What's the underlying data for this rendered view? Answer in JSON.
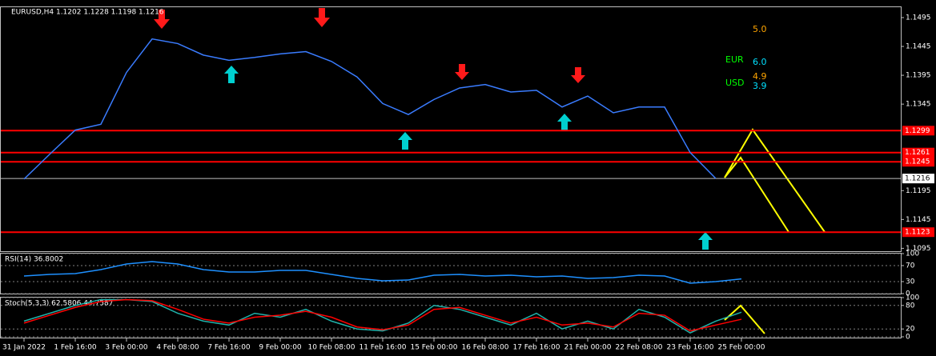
{
  "chart_data": [
    {
      "type": "line",
      "title": "EURUSD,H4  1.1202 1.1228 1.1198 1.1216",
      "categories": [
        "31 Jan 2022",
        null,
        "1 Feb 16:00",
        null,
        "3 Feb 00:00",
        null,
        "4 Feb 08:00",
        null,
        "7 Feb 16:00",
        null,
        "9 Feb 00:00",
        null,
        "10 Feb 08:00",
        null,
        "11 Feb 16:00",
        null,
        "15 Feb 00:00",
        null,
        "16 Feb 08:00",
        null,
        "17 Feb 16:00",
        null,
        "21 Feb 00:00",
        null,
        "22 Feb 08:00",
        null,
        "23 Feb 16:00",
        null,
        "25 Feb 00:00"
      ],
      "values": [
        1.1215,
        1.1258,
        1.13,
        1.131,
        1.14,
        1.1458,
        1.145,
        1.143,
        1.1421,
        1.1426,
        1.1432,
        1.1436,
        1.1419,
        1.1392,
        1.1346,
        1.1327,
        1.1353,
        1.1373,
        1.1379,
        1.1366,
        1.1369,
        1.134,
        1.1359,
        1.133,
        1.134,
        1.134,
        1.1261,
        1.1216,
        null
      ],
      "color": "#3a7cff",
      "levels": [
        1.1299,
        1.1261,
        1.1245,
        1.1123
      ],
      "level_color": "#ff0000",
      "current_price": 1.1216,
      "ylim": [
        1.109,
        1.1513
      ],
      "yticks": [
        1.1095,
        1.1145,
        1.1195,
        1.1345,
        1.1395,
        1.1445,
        1.1495
      ],
      "annotations": [
        "5.0",
        "EUR",
        "6.0",
        "4.9",
        "USD",
        "3.9"
      ]
    },
    {
      "type": "line",
      "title": "RSI(14) 36.8002",
      "values": [
        44,
        48,
        50,
        60,
        74,
        80,
        74,
        60,
        54,
        54,
        58,
        58,
        48,
        38,
        32,
        34,
        46,
        48,
        44,
        46,
        42,
        44,
        38,
        40,
        46,
        44,
        26,
        30,
        36.8002
      ],
      "color": "#1e90ff",
      "ylim": [
        0,
        100
      ],
      "yticks": [
        0,
        30,
        70,
        100
      ],
      "grid": true
    },
    {
      "type": "line",
      "title": "Stoch(5,3,3) 62.5806 44.7587",
      "series": [
        {
          "color": "#20b2aa",
          "values": [
            40,
            60,
            80,
            95,
            95,
            90,
            60,
            40,
            30,
            60,
            50,
            70,
            40,
            20,
            15,
            35,
            80,
            70,
            50,
            30,
            60,
            20,
            40,
            20,
            70,
            50,
            10,
            40,
            62.5806
          ]
        },
        {
          "color": "#ff0000",
          "values": [
            35,
            55,
            75,
            90,
            95,
            92,
            70,
            45,
            35,
            50,
            55,
            65,
            50,
            25,
            18,
            30,
            70,
            75,
            55,
            35,
            50,
            30,
            35,
            25,
            60,
            55,
            15,
            30,
            44.7587
          ]
        }
      ],
      "ylim": [
        0,
        100
      ],
      "yticks": [
        0,
        20,
        80,
        100
      ],
      "grid": true
    }
  ]
}
